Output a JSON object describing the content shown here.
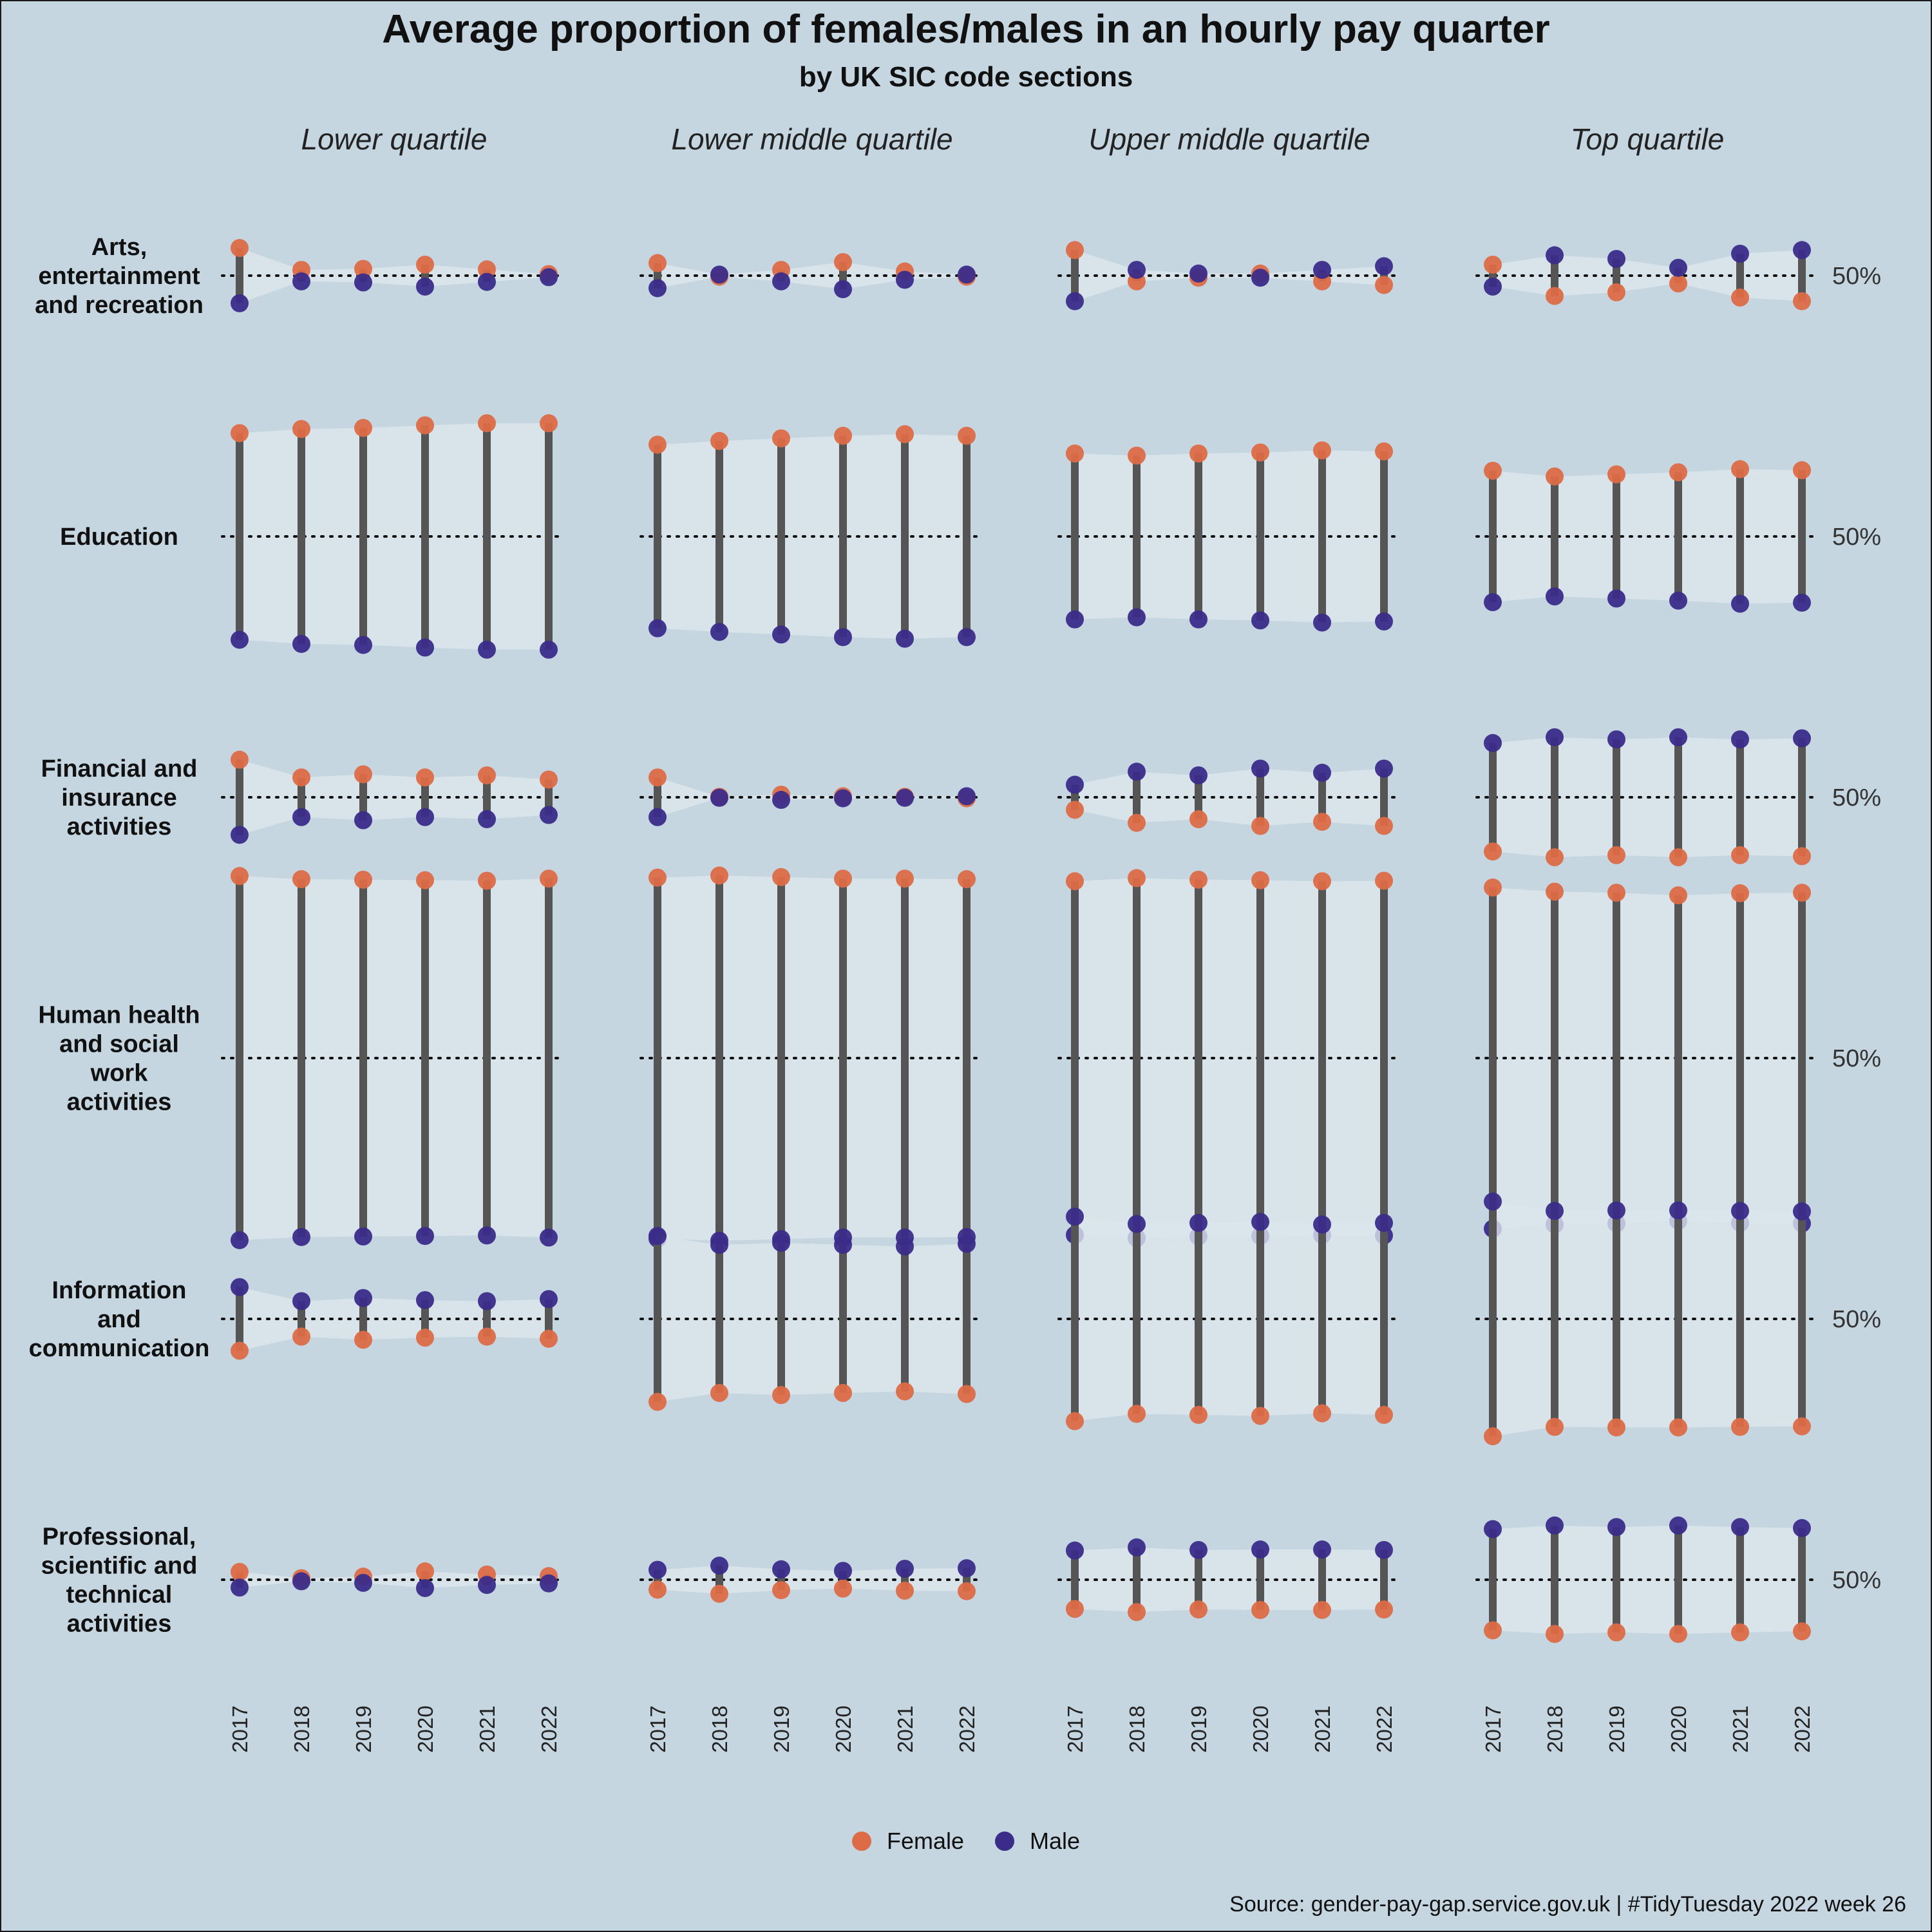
{
  "title": "Average proportion of females/males in an hourly pay quarter",
  "subtitle": "by UK SIC code sections",
  "source": "Source: gender-pay-gap.service.gov.uk | #TidyTuesday 2022 week 26",
  "legend": {
    "female_label": "Female",
    "male_label": "Male",
    "female_color": "#dd6b47",
    "male_color": "#3b2c8a"
  },
  "colors": {
    "background": "#c5d6e1",
    "ribbon": "#dce6ec",
    "segment": "#555555"
  },
  "chart_data": {
    "type": "dumbbell",
    "quartiles": [
      "Lower quartile",
      "Lower middle quartile",
      "Upper middle quartile",
      "Top quartile"
    ],
    "years": [
      "2017",
      "2018",
      "2019",
      "2020",
      "2021",
      "2022"
    ],
    "reference_label": "50%",
    "reference_value": 50,
    "y_unit": "percent",
    "sections": [
      {
        "name": "Arts, entertainment and recreation",
        "label_lines": [
          "Arts,",
          "entertainment",
          "and recreation"
        ],
        "female": [
          [
            55.3,
            51.1,
            51.3,
            52.1,
            51.2,
            50.3
          ],
          [
            52.4,
            49.8,
            51.1,
            52.6,
            50.8,
            49.8
          ],
          [
            54.9,
            48.9,
            49.6,
            50.4,
            48.9,
            48.2
          ],
          [
            52.1,
            46.1,
            46.8,
            48.5,
            45.8,
            45.1
          ]
        ],
        "male": [
          [
            44.7,
            48.9,
            48.7,
            47.9,
            48.8,
            49.7
          ],
          [
            47.6,
            50.2,
            48.9,
            47.4,
            49.2,
            50.2
          ],
          [
            45.1,
            51.1,
            50.4,
            49.6,
            51.1,
            51.8
          ],
          [
            47.9,
            53.9,
            53.2,
            51.5,
            54.2,
            54.9
          ]
        ]
      },
      {
        "name": "Education",
        "label_lines": [
          "Education"
        ],
        "female": [
          [
            69.8,
            70.6,
            70.8,
            71.3,
            71.7,
            71.7
          ],
          [
            67.6,
            68.3,
            68.8,
            69.3,
            69.6,
            69.3
          ],
          [
            65.9,
            65.5,
            65.9,
            66.1,
            66.5,
            66.3
          ],
          [
            62.6,
            61.5,
            61.9,
            62.3,
            62.9,
            62.7
          ]
        ],
        "male": [
          [
            30.2,
            29.4,
            29.2,
            28.7,
            28.3,
            28.3
          ],
          [
            32.4,
            31.7,
            31.2,
            30.7,
            30.4,
            30.7
          ],
          [
            34.1,
            34.5,
            34.1,
            33.9,
            33.5,
            33.7
          ],
          [
            37.4,
            38.5,
            38.1,
            37.7,
            37.1,
            37.3
          ]
        ]
      },
      {
        "name": "Financial and insurance activities",
        "label_lines": [
          "Financial and",
          "insurance",
          "activities"
        ],
        "female": [
          [
            57.2,
            53.8,
            54.4,
            53.8,
            54.2,
            53.4
          ],
          [
            53.8,
            50.1,
            50.5,
            50.2,
            50.1,
            49.8
          ],
          [
            47.6,
            45.1,
            45.8,
            44.5,
            45.3,
            44.5
          ],
          [
            39.6,
            38.5,
            38.9,
            38.5,
            38.9,
            38.7
          ]
        ],
        "male": [
          [
            42.8,
            46.2,
            45.6,
            46.2,
            45.8,
            46.6
          ],
          [
            46.2,
            49.9,
            49.5,
            49.8,
            49.9,
            50.2
          ],
          [
            52.4,
            54.9,
            54.2,
            55.5,
            54.7,
            55.5
          ],
          [
            60.4,
            61.5,
            61.1,
            61.5,
            61.1,
            61.3
          ]
        ]
      },
      {
        "name": "Human health and social work activities",
        "label_lines": [
          "Human health",
          "and social",
          "work",
          "activities"
        ],
        "female": [
          [
            84.9,
            84.3,
            84.2,
            84.1,
            84.0,
            84.4
          ],
          [
            84.6,
            85.0,
            84.7,
            84.4,
            84.4,
            84.3
          ],
          [
            83.9,
            84.5,
            84.2,
            84.1,
            83.9,
            84.0
          ],
          [
            82.7,
            81.9,
            81.7,
            81.2,
            81.6,
            81.7
          ]
        ],
        "male": [
          [
            15.1,
            15.7,
            15.8,
            15.9,
            16.0,
            15.6
          ],
          [
            15.4,
            15.0,
            15.3,
            15.6,
            15.6,
            15.7
          ],
          [
            16.1,
            15.5,
            15.8,
            15.9,
            16.1,
            16.0
          ],
          [
            17.3,
            18.1,
            18.3,
            18.8,
            18.4,
            18.3
          ]
        ]
      },
      {
        "name": "Information and communication",
        "label_lines": [
          "Information",
          "and",
          "communication"
        ],
        "female": [
          [
            43.9,
            46.6,
            46.0,
            46.4,
            46.6,
            46.2
          ],
          [
            34.1,
            35.8,
            35.4,
            35.8,
            36.1,
            35.6
          ],
          [
            30.4,
            31.8,
            31.6,
            31.4,
            31.9,
            31.6
          ],
          [
            27.5,
            29.3,
            29.2,
            29.2,
            29.3,
            29.4
          ]
        ],
        "male": [
          [
            56.1,
            53.4,
            54.0,
            53.6,
            53.4,
            53.8
          ],
          [
            65.9,
            64.2,
            64.6,
            64.2,
            63.9,
            64.4
          ],
          [
            69.6,
            68.2,
            68.4,
            68.6,
            68.1,
            68.4
          ],
          [
            72.5,
            70.7,
            70.8,
            70.8,
            70.7,
            70.6
          ]
        ]
      },
      {
        "name": "Professional, scientific and technical activities",
        "label_lines": [
          "Professional,",
          "scientific and",
          "technical",
          "activities"
        ],
        "female": [
          [
            51.5,
            50.3,
            50.6,
            51.6,
            51.0,
            50.7
          ],
          [
            48.1,
            47.3,
            48.0,
            48.3,
            47.9,
            47.8
          ],
          [
            44.4,
            43.8,
            44.3,
            44.2,
            44.2,
            44.3
          ],
          [
            40.3,
            39.6,
            39.9,
            39.6,
            39.9,
            40.1
          ]
        ],
        "male": [
          [
            48.5,
            49.7,
            49.4,
            48.4,
            49.0,
            49.3
          ],
          [
            51.9,
            52.7,
            52.0,
            51.7,
            52.1,
            52.2
          ],
          [
            55.6,
            56.2,
            55.7,
            55.8,
            55.8,
            55.7
          ],
          [
            59.7,
            60.4,
            60.1,
            60.4,
            60.1,
            59.9
          ]
        ]
      }
    ]
  }
}
